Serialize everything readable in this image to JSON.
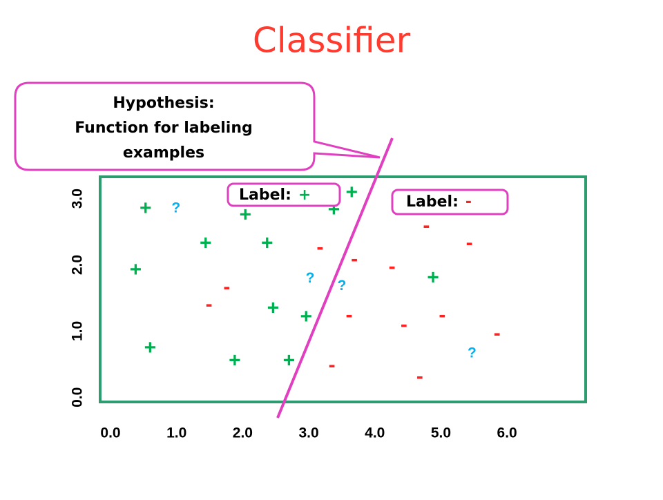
{
  "chart_data": {
    "type": "scatter",
    "title": "Classifier",
    "callout": [
      "Hypothesis:",
      "Function for labeling",
      "examples"
    ],
    "region_label": "Label:",
    "xlim": [
      -0.157,
      7.19
    ],
    "ylim": [
      -0.07,
      3.33
    ],
    "xticks": [
      {
        "value": 0,
        "label": "0.0"
      },
      {
        "value": 1,
        "label": "1.0"
      },
      {
        "value": 2,
        "label": "2.0"
      },
      {
        "value": 3,
        "label": "3.0"
      },
      {
        "value": 4,
        "label": "4.0"
      },
      {
        "value": 5,
        "label": "5.0"
      },
      {
        "value": 6,
        "label": "6.0"
      }
    ],
    "yticks": [
      {
        "value": 0,
        "label": "0.0"
      },
      {
        "value": 1,
        "label": "1.0"
      },
      {
        "value": 2,
        "label": "2.0"
      },
      {
        "value": 3,
        "label": "3.0"
      }
    ],
    "series": [
      {
        "name": "+",
        "color": "#00b050",
        "x": [
          0.53,
          2.04,
          1.44,
          2.37,
          0.38,
          2.46,
          2.96,
          0.6,
          1.88,
          2.7,
          4.88,
          3.65,
          3.38
        ],
        "values": [
          2.84,
          2.74,
          2.31,
          2.31,
          1.91,
          1.33,
          1.2,
          0.73,
          0.54,
          0.54,
          1.79,
          3.08,
          2.82
        ]
      },
      {
        "name": "-",
        "color": "#ff2020",
        "x": [
          4.78,
          5.43,
          3.17,
          3.69,
          4.26,
          1.76,
          1.49,
          3.61,
          5.02,
          4.44,
          5.85,
          3.35,
          4.68
        ],
        "values": [
          2.58,
          2.32,
          2.25,
          2.07,
          1.96,
          1.65,
          1.39,
          1.23,
          1.23,
          1.08,
          0.95,
          0.47,
          0.3
        ]
      },
      {
        "name": "?",
        "color": "#00b0f0",
        "x": [
          0.99,
          3.02,
          3.5,
          5.47
        ],
        "values": [
          2.85,
          1.79,
          1.68,
          0.66
        ]
      }
    ]
  }
}
